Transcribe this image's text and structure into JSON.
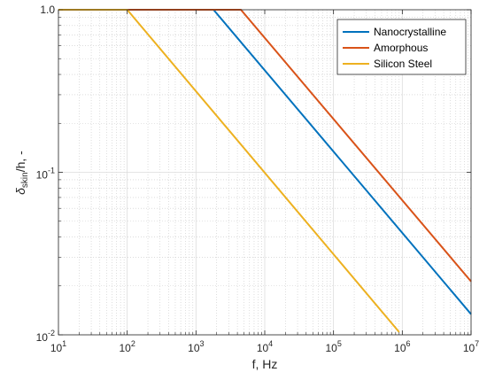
{
  "chart_data": {
    "type": "line",
    "xlabel": "f, Hz",
    "ylabel_parts": {
      "main": "δ",
      "sub": "skin",
      "rest": "/h, -"
    },
    "x_scale": "log",
    "y_scale": "log",
    "xlim": [
      10,
      10000000
    ],
    "ylim": [
      0.01,
      1
    ],
    "grid": true,
    "minor_grid": true,
    "legend_position": "top-right",
    "x_ticks": [
      {
        "base": "10",
        "exp": "1",
        "value": 10
      },
      {
        "base": "10",
        "exp": "2",
        "value": 100
      },
      {
        "base": "10",
        "exp": "3",
        "value": 1000
      },
      {
        "base": "10",
        "exp": "4",
        "value": 10000
      },
      {
        "base": "10",
        "exp": "5",
        "value": 100000
      },
      {
        "base": "10",
        "exp": "6",
        "value": 1000000
      },
      {
        "base": "10",
        "exp": "7",
        "value": 10000000
      }
    ],
    "y_ticks": [
      {
        "base": "10",
        "exp": "-2",
        "value": 0.01
      },
      {
        "base": "10",
        "exp": "-1",
        "value": 0.1
      },
      {
        "base": "10",
        "exp": "0",
        "value": 1,
        "plain": "1.0"
      }
    ],
    "series": [
      {
        "name": "Nanocrystalline",
        "color": "#0072BD",
        "x": [
          10,
          1800,
          10000000
        ],
        "y": [
          1,
          1,
          0.0134
        ]
      },
      {
        "name": "Amorphous",
        "color": "#D95319",
        "x": [
          10,
          4500,
          10000000
        ],
        "y": [
          1,
          1,
          0.0213
        ]
      },
      {
        "name": "Silicon Steel",
        "color": "#EDB120",
        "x": [
          10,
          100,
          900000
        ],
        "y": [
          1,
          1,
          0.0104
        ]
      }
    ]
  }
}
